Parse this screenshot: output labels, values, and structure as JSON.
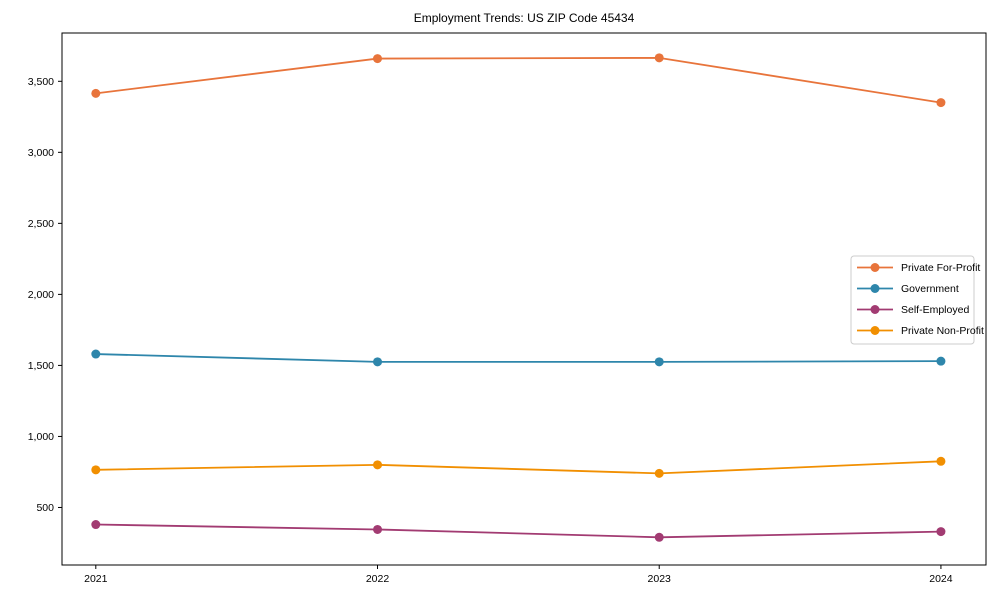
{
  "chart_data": {
    "type": "line",
    "title": "Employment Trends: US ZIP Code 45434",
    "xlabel": "",
    "ylabel": "",
    "grid": false,
    "legend_position": "center right",
    "x": [
      2021,
      2022,
      2023,
      2024
    ],
    "x_tick_labels": [
      "2021",
      "2022",
      "2023",
      "2024"
    ],
    "y_ticks": [
      {
        "value": 500,
        "label": "500"
      },
      {
        "value": 1000,
        "label": "1,000"
      },
      {
        "value": 1500,
        "label": "1,500"
      },
      {
        "value": 2000,
        "label": "2,000"
      },
      {
        "value": 2500,
        "label": "2,500"
      },
      {
        "value": 3000,
        "label": "3,000"
      },
      {
        "value": 3500,
        "label": "3,500"
      }
    ],
    "ylim": [
      95,
      3840
    ],
    "xlim": [
      2020.88,
      2024.16
    ],
    "series": [
      {
        "name": "Private For-Profit",
        "color": "#E8743B",
        "values": [
          3415,
          3660,
          3665,
          3350
        ]
      },
      {
        "name": "Government",
        "color": "#2E86AB",
        "values": [
          1580,
          1525,
          1525,
          1530
        ]
      },
      {
        "name": "Self-Employed",
        "color": "#A23B72",
        "values": [
          380,
          345,
          290,
          330
        ]
      },
      {
        "name": "Private Non-Profit",
        "color": "#F18F01",
        "values": [
          765,
          800,
          740,
          825
        ]
      }
    ]
  }
}
